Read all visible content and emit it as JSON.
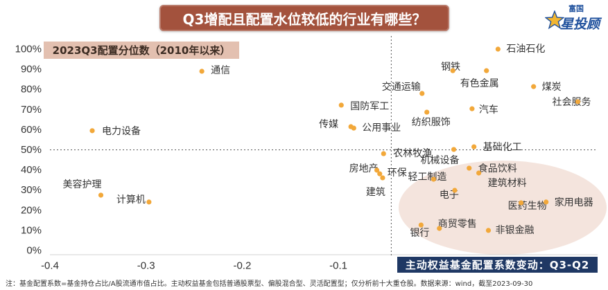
{
  "brand": {
    "small": "富国",
    "large": "星投顾"
  },
  "note": "注：基金配置系数=基金持仓占比/A股流通市值占比。主动权益基金包括普通股票型、偏股混合型、灵活配置型；仅分析前十大重仓股。数据来源：wind，截至2023-09-30",
  "colors": {
    "title_bg": "#a3523d",
    "ylabel_bg": "#e3c0b0",
    "xlabel_bg": "#1f3864",
    "point": "#f2a83a",
    "highlight": "#f3e1d9",
    "reference_line": "#555555",
    "brand_blue": "#1d4f9c",
    "brand_gold": "#f2b631"
  },
  "chart_data": {
    "type": "scatter",
    "title": "Q3增配且配置水位较低的行业有哪些？",
    "xlabel": "主动权益基金配置系数变动：Q3-Q2",
    "ylabel": "2023Q3配置分位数（2010年以来）",
    "xlim": [
      -0.4,
      0.17
    ],
    "ylim": [
      0,
      100
    ],
    "x_ticks": [
      "-0.4",
      "-0.3",
      "-0.2",
      "-0.1"
    ],
    "y_ticks": [
      "100%",
      "90%",
      "80%",
      "70%",
      "60%",
      "50%",
      "40%",
      "30%",
      "20%",
      "10%",
      "0%"
    ],
    "grid": false,
    "reference_lines": {
      "x": -0.045,
      "y": 50
    },
    "points": [
      {
        "label": "石油石化",
        "x": 0.066,
        "y": 100
      },
      {
        "label": "钢铁",
        "x": 0.019,
        "y": 89.3
      },
      {
        "label": "有色金属",
        "x": 0.054,
        "y": 89.3
      },
      {
        "label": "煤炭",
        "x": 0.103,
        "y": 81.4
      },
      {
        "label": "社会服务",
        "x": 0.149,
        "y": 73.9
      },
      {
        "label": "交通运输",
        "x": -0.013,
        "y": 78.0
      },
      {
        "label": "国防军工",
        "x": -0.097,
        "y": 72.2
      },
      {
        "label": "汽车",
        "x": 0.039,
        "y": 70.4
      },
      {
        "label": "纺织服饰",
        "x": -0.008,
        "y": 68.7
      },
      {
        "label": "传媒",
        "x": -0.087,
        "y": 61.5
      },
      {
        "label": "公用事业",
        "x": -0.084,
        "y": 60.8
      },
      {
        "label": "电力设备",
        "x": -0.356,
        "y": 59.5
      },
      {
        "label": "通信",
        "x": -0.242,
        "y": 89.0
      },
      {
        "label": "美容护理",
        "x": -0.347,
        "y": 27.5
      },
      {
        "label": "计算机",
        "x": -0.297,
        "y": 24.1
      },
      {
        "label": "基础化工",
        "x": 0.041,
        "y": 51.5
      },
      {
        "label": "农林牧渔",
        "x": -0.053,
        "y": 48.1
      },
      {
        "label": "机械设备",
        "x": 0.02,
        "y": 50.2
      },
      {
        "label": "房地产",
        "x": -0.06,
        "y": 39.9
      },
      {
        "label": "环保",
        "x": -0.057,
        "y": 38.1
      },
      {
        "label": "建筑",
        "x": -0.054,
        "y": 36.1
      },
      {
        "label": "轻工制造",
        "x": -0.001,
        "y": 35.4
      },
      {
        "label": "食品饮料",
        "x": 0.036,
        "y": 40.9
      },
      {
        "label": "建筑材料",
        "x": 0.046,
        "y": 38.5
      },
      {
        "label": "电子",
        "x": 0.021,
        "y": 29.9
      },
      {
        "label": "医药生物",
        "x": 0.09,
        "y": 23.7
      },
      {
        "label": "家用电器",
        "x": 0.116,
        "y": 24.1
      },
      {
        "label": "商贸零售",
        "x": 0.005,
        "y": 11.0
      },
      {
        "label": "银行",
        "x": -0.014,
        "y": 12.7
      },
      {
        "label": "非银金融",
        "x": 0.056,
        "y": 10.0
      }
    ]
  }
}
